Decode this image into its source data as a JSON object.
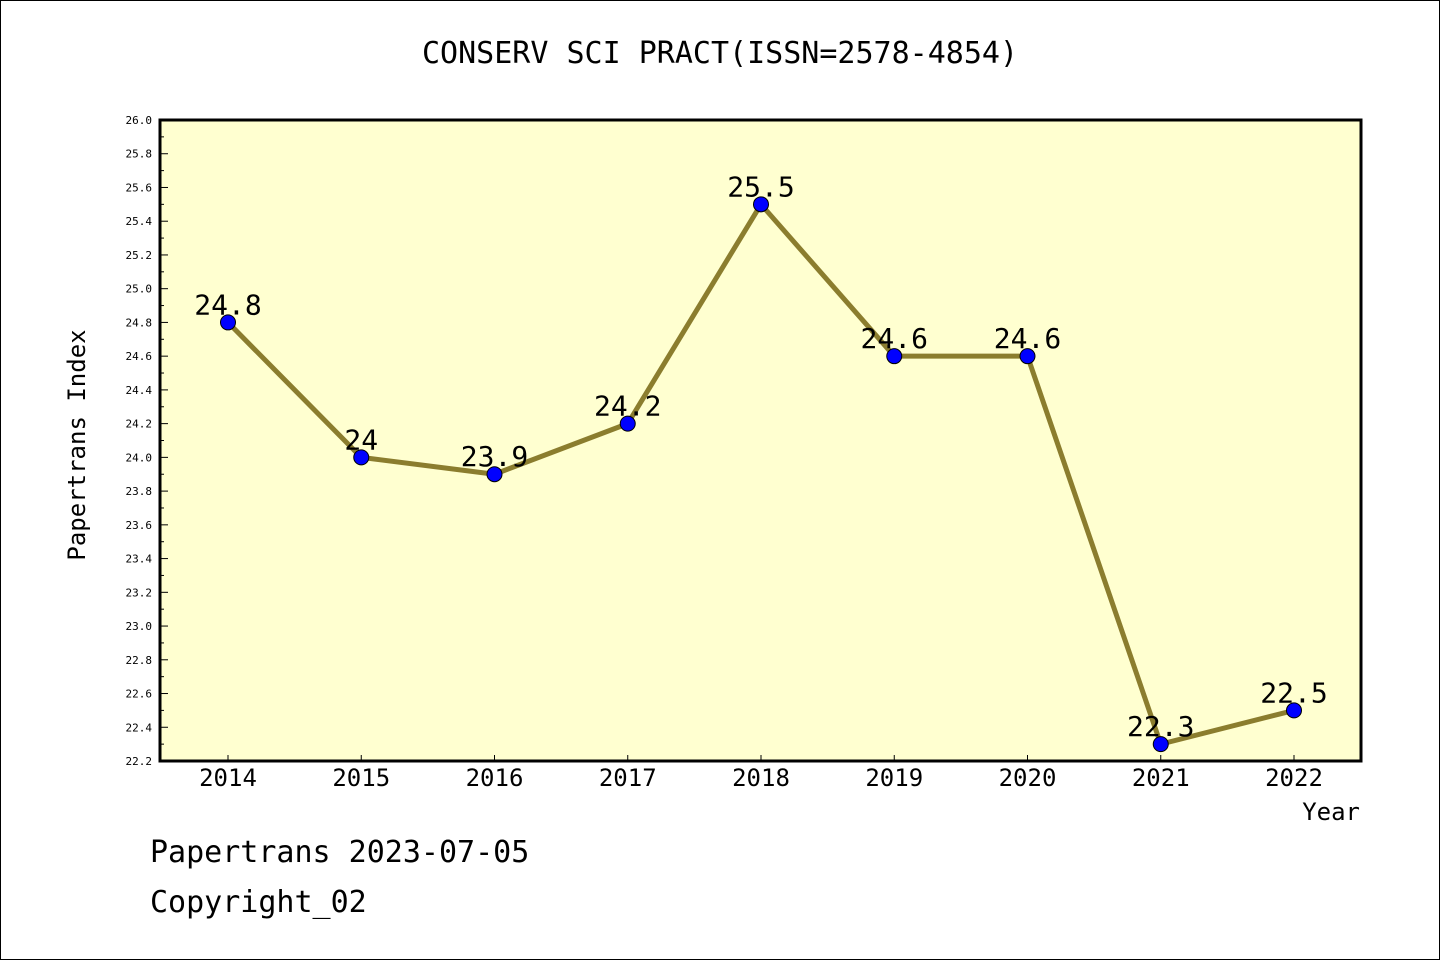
{
  "chart_data": {
    "type": "line",
    "title": "CONSERV SCI PRACT(ISSN=2578-4854)",
    "xlabel": "Year",
    "ylabel": "Papertrans Index",
    "categories": [
      "2014",
      "2015",
      "2016",
      "2017",
      "2018",
      "2019",
      "2020",
      "2021",
      "2022"
    ],
    "series": [
      {
        "values": [
          24.8,
          24.0,
          23.9,
          24.2,
          25.5,
          24.6,
          24.6,
          22.3,
          22.5
        ],
        "data_labels": [
          "24.8",
          "24",
          "23.9",
          "24.2",
          "25.5",
          "24.6",
          "24.6",
          "22.3",
          "22.5"
        ]
      }
    ],
    "ylim": [
      22.2,
      26.0
    ],
    "yticks": [
      "22.2",
      "22.4",
      "22.6",
      "22.8",
      "23.0",
      "23.2",
      "23.4",
      "23.6",
      "23.8",
      "24.0",
      "24.2",
      "24.4",
      "24.6",
      "24.8",
      "25.0",
      "25.2",
      "25.4",
      "25.6",
      "25.8",
      "26.0"
    ],
    "grid": false,
    "legend": "none",
    "colors": {
      "plot_background": "#ffffd0",
      "line": "#8b7d2e",
      "marker": "#0000ff",
      "axis": "#000000"
    }
  },
  "footer": {
    "line1": "Papertrans 2023-07-05",
    "line2": "Copyright_02"
  }
}
